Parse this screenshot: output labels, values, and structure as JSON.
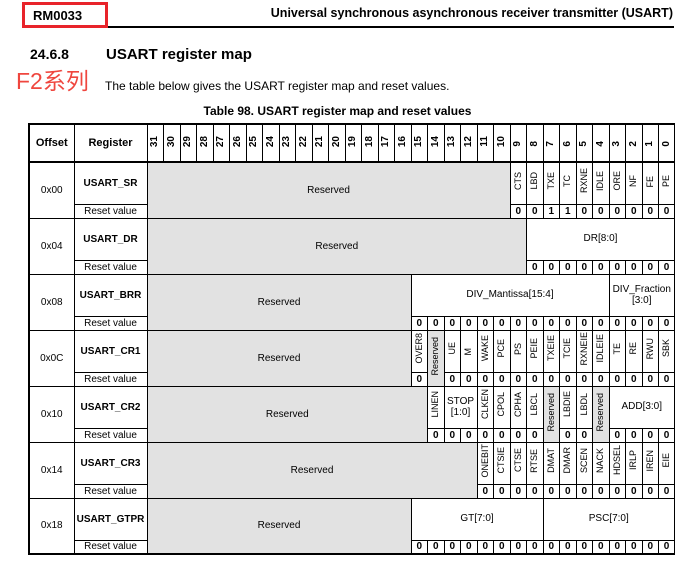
{
  "page": {
    "doc_id": "RM0033",
    "header_title": "Universal synchronous asynchronous receiver transmitter (USART)",
    "section_number": "24.6.8",
    "section_title": "USART register map",
    "annotation": "F2系列",
    "intro": "The table below gives the USART register map and reset values.",
    "table_caption": "Table 98. USART register map and reset values",
    "accent_red": "#e8232a",
    "annotation_red": "#ef463e",
    "reserved_gray": "#e2e2e2"
  },
  "register_table": {
    "col_offset": "Offset",
    "col_register": "Register",
    "bits": [
      "31",
      "30",
      "29",
      "28",
      "27",
      "26",
      "25",
      "24",
      "23",
      "22",
      "21",
      "20",
      "19",
      "18",
      "17",
      "16",
      "15",
      "14",
      "13",
      "12",
      "11",
      "10",
      "9",
      "8",
      "7",
      "6",
      "5",
      "4",
      "3",
      "2",
      "1",
      "0"
    ],
    "reset_label": "Reset value",
    "reserved_label": "Reserved",
    "rows": [
      {
        "offset": "0x00",
        "name": "USART_SR",
        "fields": [
          {
            "t": "res",
            "span": 22
          },
          {
            "t": "v",
            "label": "CTS"
          },
          {
            "t": "v",
            "label": "LBD"
          },
          {
            "t": "v",
            "label": "TXE"
          },
          {
            "t": "v",
            "label": "TC"
          },
          {
            "t": "v",
            "label": "RXNE"
          },
          {
            "t": "v",
            "label": "IDLE"
          },
          {
            "t": "v",
            "label": "ORE"
          },
          {
            "t": "v",
            "label": "NF"
          },
          {
            "t": "v",
            "label": "FE"
          },
          {
            "t": "v",
            "label": "PE"
          }
        ],
        "resets": [
          "0",
          "0",
          "1",
          "1",
          "0",
          "0",
          "0",
          "0",
          "0",
          "0"
        ]
      },
      {
        "offset": "0x04",
        "name": "USART_DR",
        "fields": [
          {
            "t": "res",
            "span": 23
          },
          {
            "t": "h",
            "span": 9,
            "label": "DR[8:0]"
          }
        ],
        "resets": [
          "0",
          "0",
          "0",
          "0",
          "0",
          "0",
          "0",
          "0",
          "0"
        ]
      },
      {
        "offset": "0x08",
        "name": "USART_BRR",
        "fields": [
          {
            "t": "res",
            "span": 16
          },
          {
            "t": "h",
            "span": 12,
            "label": "DIV_Mantissa[15:4]"
          },
          {
            "t": "h",
            "span": 4,
            "label": "DIV_Fraction\n[3:0]"
          }
        ],
        "resets": [
          "0",
          "0",
          "0",
          "0",
          "0",
          "0",
          "0",
          "0",
          "0",
          "0",
          "0",
          "0",
          "0",
          "0",
          "0",
          "0"
        ]
      },
      {
        "offset": "0x0C",
        "name": "USART_CR1",
        "fields": [
          {
            "t": "res",
            "span": 16
          },
          {
            "t": "v",
            "label": "OVER8"
          },
          {
            "t": "resv"
          },
          {
            "t": "v",
            "label": "UE"
          },
          {
            "t": "v",
            "label": "M"
          },
          {
            "t": "v",
            "label": "WAKE"
          },
          {
            "t": "v",
            "label": "PCE"
          },
          {
            "t": "v",
            "label": "PS"
          },
          {
            "t": "v",
            "label": "PEIE"
          },
          {
            "t": "v",
            "label": "TXEIE"
          },
          {
            "t": "v",
            "label": "TCIE"
          },
          {
            "t": "v",
            "label": "RXNEIE"
          },
          {
            "t": "v",
            "label": "IDLEIE"
          },
          {
            "t": "v",
            "label": "TE"
          },
          {
            "t": "v",
            "label": "RE"
          },
          {
            "t": "v",
            "label": "RWU"
          },
          {
            "t": "v",
            "label": "SBK"
          }
        ],
        "resets": [
          "0",
          "0",
          "0",
          "0",
          "0",
          "0",
          "0",
          "0",
          "0",
          "0",
          "0",
          "0",
          "0",
          "0",
          "0"
        ]
      },
      {
        "offset": "0x10",
        "name": "USART_CR2",
        "fields": [
          {
            "t": "res",
            "span": 17
          },
          {
            "t": "v",
            "label": "LINEN"
          },
          {
            "t": "h",
            "span": 2,
            "label": "STOP\n[1:0]"
          },
          {
            "t": "v",
            "label": "CLKEN"
          },
          {
            "t": "v",
            "label": "CPOL"
          },
          {
            "t": "v",
            "label": "CPHA"
          },
          {
            "t": "v",
            "label": "LBCL"
          },
          {
            "t": "resv"
          },
          {
            "t": "v",
            "label": "LBDIE"
          },
          {
            "t": "v",
            "label": "LBDL"
          },
          {
            "t": "resv"
          },
          {
            "t": "h",
            "span": 4,
            "label": "ADD[3:0]"
          }
        ],
        "resets": [
          "0",
          "0",
          "0",
          "0",
          "0",
          "0",
          "0",
          "0",
          "0",
          "0",
          "0",
          "0",
          "0"
        ]
      },
      {
        "offset": "0x14",
        "name": "USART_CR3",
        "fields": [
          {
            "t": "res",
            "span": 20
          },
          {
            "t": "v",
            "label": "ONEBIT"
          },
          {
            "t": "v",
            "label": "CTSIE"
          },
          {
            "t": "v",
            "label": "CTSE"
          },
          {
            "t": "v",
            "label": "RTSE"
          },
          {
            "t": "v",
            "label": "DMAT"
          },
          {
            "t": "v",
            "label": "DMAR"
          },
          {
            "t": "v",
            "label": "SCEN"
          },
          {
            "t": "v",
            "label": "NACK"
          },
          {
            "t": "v",
            "label": "HDSEL"
          },
          {
            "t": "v",
            "label": "IRLP"
          },
          {
            "t": "v",
            "label": "IREN"
          },
          {
            "t": "v",
            "label": "EIE"
          }
        ],
        "resets": [
          "0",
          "0",
          "0",
          "0",
          "0",
          "0",
          "0",
          "0",
          "0",
          "0",
          "0",
          "0"
        ]
      },
      {
        "offset": "0x18",
        "name": "USART_GTPR",
        "fields": [
          {
            "t": "res",
            "span": 16
          },
          {
            "t": "h",
            "span": 8,
            "label": "GT[7:0]"
          },
          {
            "t": "h",
            "span": 8,
            "label": "PSC[7:0]"
          }
        ],
        "resets": [
          "0",
          "0",
          "0",
          "0",
          "0",
          "0",
          "0",
          "0",
          "0",
          "0",
          "0",
          "0",
          "0",
          "0",
          "0",
          "0"
        ]
      }
    ]
  }
}
